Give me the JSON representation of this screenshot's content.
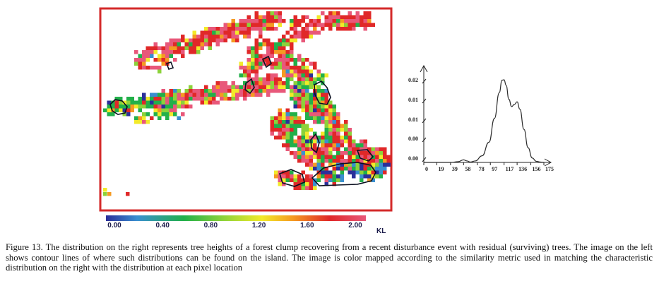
{
  "figure": {
    "colorbar": {
      "ticks": [
        "0.00",
        "0.40",
        "0.80",
        "1.20",
        "1.60",
        "2.00"
      ],
      "unit": "KL",
      "colors": [
        "#2b2f9a",
        "#3a8fd0",
        "#22b04a",
        "#8cd23a",
        "#f2ea2a",
        "#f59a22",
        "#e02828",
        "#e8587a"
      ]
    },
    "map": {
      "border_color": "#d42a2a"
    }
  },
  "chart_data": {
    "type": "line",
    "title": "",
    "xlabel": "",
    "ylabel": "",
    "x_ticks": [
      "0",
      "19",
      "39",
      "58",
      "78",
      "97",
      "117",
      "136",
      "156",
      "175"
    ],
    "y_ticks": [
      "0.00",
      "0.00",
      "0.01",
      "0.01",
      "0.02"
    ],
    "xlim": [
      0,
      175
    ],
    "ylim": [
      0,
      0.025
    ],
    "series": [
      {
        "x": [
          0,
          20,
          40,
          50,
          58,
          63,
          68,
          75,
          85,
          95,
          103,
          110,
          114,
          117,
          120,
          124,
          128,
          132,
          136,
          140,
          146,
          152,
          158,
          164,
          170,
          175
        ],
        "y": [
          0,
          0,
          0,
          0.0002,
          0.0007,
          0.0004,
          0.0001,
          0.0004,
          0.0018,
          0.0055,
          0.012,
          0.019,
          0.0224,
          0.0225,
          0.021,
          0.0172,
          0.0152,
          0.0158,
          0.0165,
          0.0145,
          0.009,
          0.004,
          0.0012,
          0.0003,
          0.0001,
          0
        ]
      }
    ],
    "grid": false
  },
  "caption": "Figure 13.  The distribution on the right represents tree heights of a forest clump recovering from a recent disturbance event with residual (surviving) trees. The image on the left shows contour lines of where such distributions can be found on the island. The image is color mapped according to the similarity metric used in matching the characteristic distribution on the right with the distribution at each pixel location"
}
